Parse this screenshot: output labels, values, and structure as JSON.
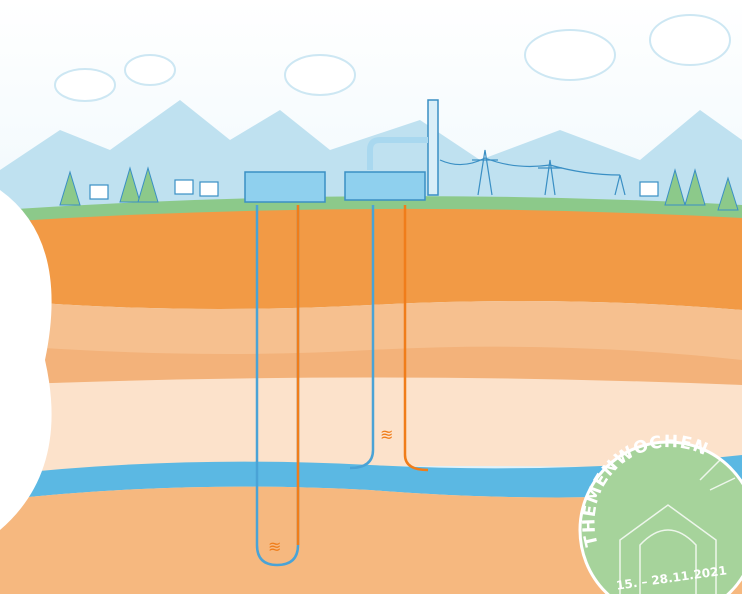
{
  "badge": {
    "title": "THEMENWOCHEN",
    "dates": "15. – 28.11.2021"
  }
}
